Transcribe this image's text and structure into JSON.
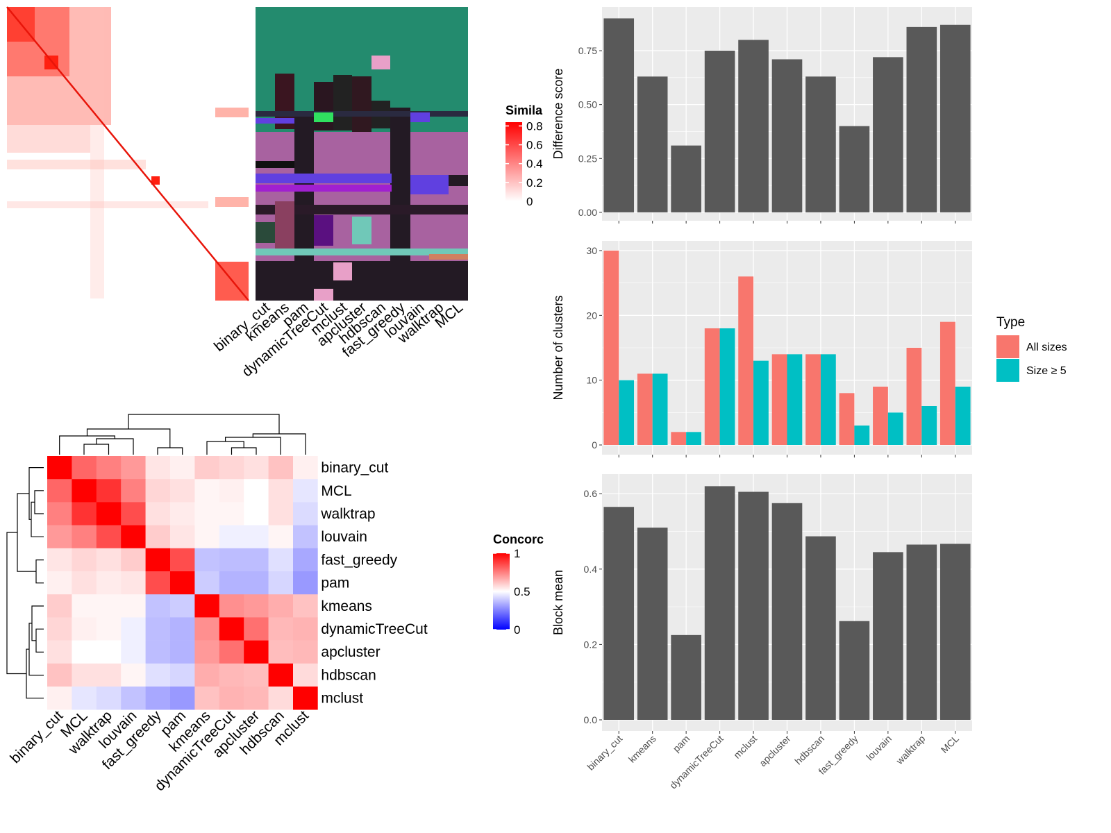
{
  "chart_data": [
    {
      "type": "image-heatmap",
      "legend_title": "Simila",
      "legend_ticks": [
        0,
        0.2,
        0.4,
        0.6,
        0.8
      ],
      "legend_lim": [
        0,
        0.84
      ],
      "legend_colors": [
        "#ffffff",
        "#ff0000"
      ],
      "column_labels": [
        "binary_cut",
        "kmeans",
        "pam",
        "dynamicTreeCut",
        "mclust",
        "apcluster",
        "hdbscan",
        "fast_greedy",
        "louvain",
        "walktrap",
        "MCL"
      ]
    },
    {
      "type": "heatmap",
      "legend_title": "Concorc",
      "legend_ticks": [
        0,
        0.5,
        1
      ],
      "legend_lim": [
        0,
        1
      ],
      "legend_colors": [
        "#0000ff",
        "#ffffff",
        "#ff0000"
      ],
      "row_labels": [
        "binary_cut",
        "MCL",
        "walktrap",
        "louvain",
        "fast_greedy",
        "pam",
        "kmeans",
        "dynamicTreeCut",
        "apcluster",
        "hdbscan",
        "mclust"
      ],
      "column_labels": [
        "binary_cut",
        "MCL",
        "walktrap",
        "louvain",
        "fast_greedy",
        "pam",
        "kmeans",
        "dynamicTreeCut",
        "apcluster",
        "hdbscan",
        "mclust"
      ],
      "values": [
        [
          1,
          0.8,
          0.75,
          0.7,
          0.55,
          0.53,
          0.6,
          0.58,
          0.56,
          0.62,
          0.53
        ],
        [
          0.8,
          1,
          0.9,
          0.75,
          0.58,
          0.56,
          0.52,
          0.53,
          0.5,
          0.56,
          0.45
        ],
        [
          0.75,
          0.9,
          1,
          0.85,
          0.56,
          0.54,
          0.52,
          0.52,
          0.5,
          0.56,
          0.43
        ],
        [
          0.7,
          0.75,
          0.85,
          1,
          0.6,
          0.55,
          0.52,
          0.47,
          0.47,
          0.52,
          0.38
        ],
        [
          0.55,
          0.58,
          0.56,
          0.6,
          1,
          0.85,
          0.38,
          0.37,
          0.37,
          0.44,
          0.33
        ],
        [
          0.53,
          0.56,
          0.54,
          0.55,
          0.85,
          1,
          0.4,
          0.35,
          0.35,
          0.42,
          0.3
        ],
        [
          0.6,
          0.52,
          0.52,
          0.52,
          0.38,
          0.4,
          1,
          0.72,
          0.7,
          0.66,
          0.62
        ],
        [
          0.58,
          0.53,
          0.52,
          0.47,
          0.37,
          0.35,
          0.72,
          1,
          0.78,
          0.64,
          0.65
        ],
        [
          0.56,
          0.5,
          0.5,
          0.47,
          0.37,
          0.35,
          0.7,
          0.78,
          1,
          0.63,
          0.64
        ],
        [
          0.62,
          0.56,
          0.56,
          0.52,
          0.44,
          0.42,
          0.66,
          0.64,
          0.63,
          1,
          0.57
        ],
        [
          0.53,
          0.45,
          0.43,
          0.38,
          0.33,
          0.3,
          0.62,
          0.65,
          0.64,
          0.57,
          1
        ]
      ]
    },
    {
      "type": "bar",
      "y_label": "Difference score",
      "color": "#595959",
      "grid": true,
      "show_x_labels": false,
      "categories": [
        "binary_cut",
        "kmeans",
        "pam",
        "dynamicTreeCut",
        "mclust",
        "apcluster",
        "hdbscan",
        "fast_greedy",
        "louvain",
        "walktrap",
        "MCL"
      ],
      "values": [
        0.9,
        0.63,
        0.31,
        0.75,
        0.8,
        0.71,
        0.63,
        0.4,
        0.72,
        0.86,
        0.87
      ],
      "ylim": [
        -0.039,
        0.953
      ],
      "yticks": [
        {
          "value": 0,
          "label": "0.00"
        },
        {
          "value": 0.25,
          "label": "0.25"
        },
        {
          "value": 0.5,
          "label": "0.50"
        },
        {
          "value": 0.75,
          "label": "0.75"
        }
      ]
    },
    {
      "type": "grouped_bar",
      "y_label": "Number of clusters",
      "grid": true,
      "show_x_labels": false,
      "legend_title": "Type",
      "legend": "right",
      "categories": [
        "binary_cut",
        "kmeans",
        "pam",
        "dynamicTreeCut",
        "mclust",
        "apcluster",
        "hdbscan",
        "fast_greedy",
        "louvain",
        "walktrap",
        "MCL"
      ],
      "series": [
        {
          "name": "All sizes",
          "color": "#F8766D",
          "values": [
            30,
            11,
            2,
            18,
            26,
            14,
            14,
            8,
            9,
            15,
            19
          ]
        },
        {
          "name": "Size ≥ 5",
          "color": "#00BFC4",
          "values": [
            10,
            11,
            2,
            18,
            13,
            14,
            14,
            3,
            5,
            6,
            9
          ]
        }
      ],
      "ylim": [
        -1.5,
        31.5
      ],
      "yticks": [
        0,
        10,
        20,
        30
      ]
    },
    {
      "type": "bar",
      "y_label": "Block mean",
      "color": "#595959",
      "grid": true,
      "show_x_labels": true,
      "categories": [
        "binary_cut",
        "kmeans",
        "pam",
        "dynamicTreeCut",
        "mclust",
        "apcluster",
        "hdbscan",
        "fast_greedy",
        "louvain",
        "walktrap",
        "MCL"
      ],
      "values": [
        0.565,
        0.51,
        0.225,
        0.62,
        0.605,
        0.575,
        0.487,
        0.262,
        0.445,
        0.465,
        0.467
      ],
      "ylim": [
        -0.0295,
        0.652
      ],
      "yticks": [
        {
          "value": 0,
          "label": "0.0"
        },
        {
          "value": 0.2,
          "label": "0.2"
        },
        {
          "value": 0.4,
          "label": "0.4"
        },
        {
          "value": 0.6,
          "label": "0.6"
        }
      ]
    }
  ]
}
